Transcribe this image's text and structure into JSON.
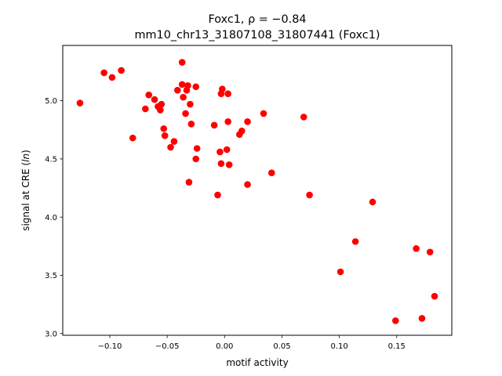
{
  "chart_data": {
    "type": "scatter",
    "title_line1": "Foxc1, ρ = −0.84",
    "title_line2": "mm10_chr13_31807108_31807441 (Foxc1)",
    "xlabel": "motif activity",
    "ylabel": "signal at CRE (ln)",
    "xlim": [
      -0.141,
      0.198
    ],
    "ylim": [
      2.985,
      5.475
    ],
    "x_ticks": [
      -0.1,
      -0.05,
      0.0,
      0.05,
      0.1,
      0.15
    ],
    "x_tick_labels": [
      "−0.10",
      "−0.05",
      "0.00",
      "0.05",
      "0.10",
      "0.15"
    ],
    "y_ticks": [
      3.0,
      3.5,
      4.0,
      4.5,
      5.0
    ],
    "y_tick_labels": [
      "3.0",
      "3.5",
      "4.0",
      "4.5",
      "5.0"
    ],
    "grid": false,
    "marker_color": "#ff0000",
    "points": [
      {
        "x": -0.126,
        "y": 4.98
      },
      {
        "x": -0.105,
        "y": 5.24
      },
      {
        "x": -0.098,
        "y": 5.2
      },
      {
        "x": -0.09,
        "y": 5.26
      },
      {
        "x": -0.08,
        "y": 4.68
      },
      {
        "x": -0.069,
        "y": 4.93
      },
      {
        "x": -0.066,
        "y": 5.05
      },
      {
        "x": -0.061,
        "y": 5.01
      },
      {
        "x": -0.058,
        "y": 4.95
      },
      {
        "x": -0.056,
        "y": 4.92
      },
      {
        "x": -0.055,
        "y": 4.97
      },
      {
        "x": -0.053,
        "y": 4.76
      },
      {
        "x": -0.052,
        "y": 4.7
      },
      {
        "x": -0.047,
        "y": 4.6
      },
      {
        "x": -0.044,
        "y": 4.65
      },
      {
        "x": -0.041,
        "y": 5.09
      },
      {
        "x": -0.037,
        "y": 5.14
      },
      {
        "x": -0.037,
        "y": 5.33
      },
      {
        "x": -0.036,
        "y": 5.03
      },
      {
        "x": -0.034,
        "y": 4.89
      },
      {
        "x": -0.033,
        "y": 5.09
      },
      {
        "x": -0.032,
        "y": 5.13
      },
      {
        "x": -0.031,
        "y": 4.3
      },
      {
        "x": -0.03,
        "y": 4.97
      },
      {
        "x": -0.029,
        "y": 4.8
      },
      {
        "x": -0.025,
        "y": 4.5
      },
      {
        "x": -0.024,
        "y": 4.59
      },
      {
        "x": -0.025,
        "y": 5.12
      },
      {
        "x": -0.009,
        "y": 4.79
      },
      {
        "x": -0.006,
        "y": 4.19
      },
      {
        "x": -0.004,
        "y": 4.56
      },
      {
        "x": -0.003,
        "y": 5.06
      },
      {
        "x": -0.003,
        "y": 4.46
      },
      {
        "x": -0.002,
        "y": 5.1
      },
      {
        "x": 0.002,
        "y": 4.58
      },
      {
        "x": 0.003,
        "y": 5.06
      },
      {
        "x": 0.003,
        "y": 4.82
      },
      {
        "x": 0.004,
        "y": 4.45
      },
      {
        "x": 0.013,
        "y": 4.71
      },
      {
        "x": 0.015,
        "y": 4.74
      },
      {
        "x": 0.02,
        "y": 4.82
      },
      {
        "x": 0.02,
        "y": 4.28
      },
      {
        "x": 0.034,
        "y": 4.89
      },
      {
        "x": 0.041,
        "y": 4.38
      },
      {
        "x": 0.069,
        "y": 4.86
      },
      {
        "x": 0.074,
        "y": 4.19
      },
      {
        "x": 0.101,
        "y": 3.53
      },
      {
        "x": 0.114,
        "y": 3.79
      },
      {
        "x": 0.129,
        "y": 4.13
      },
      {
        "x": 0.149,
        "y": 3.11
      },
      {
        "x": 0.167,
        "y": 3.73
      },
      {
        "x": 0.172,
        "y": 3.13
      },
      {
        "x": 0.179,
        "y": 3.7
      },
      {
        "x": 0.183,
        "y": 3.32
      }
    ]
  }
}
